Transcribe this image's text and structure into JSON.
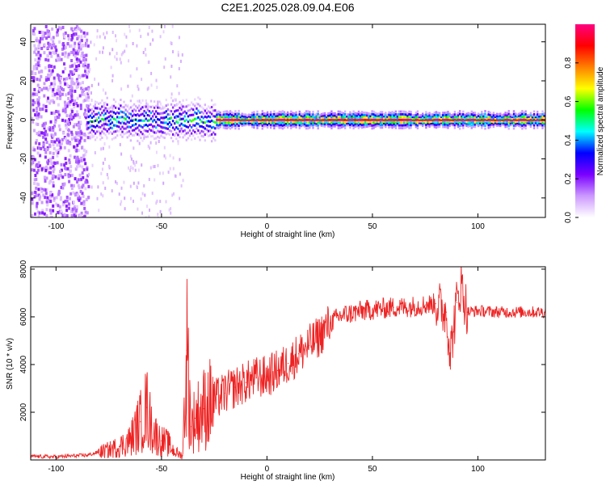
{
  "title": "C2E1.2025.028.09.04.E06",
  "chart_data": [
    {
      "type": "heatmap",
      "xlabel": "Height of straight line (km)",
      "ylabel": "Frequency (Hz)",
      "xlim": [
        -112,
        132
      ],
      "ylim": [
        -50,
        49
      ],
      "xticks": [
        "-100",
        "-50",
        "0",
        "50",
        "100"
      ],
      "xtick_values": [
        -100,
        -50,
        0,
        50,
        100
      ],
      "yticks": [
        "40",
        "20",
        "0",
        "-20",
        "-40"
      ],
      "ytick_values": [
        40,
        20,
        0,
        -20,
        -40
      ],
      "grid": false,
      "colorbar": {
        "label": "Normalized spectral amplitude",
        "range": [
          0,
          1
        ],
        "ticks": [
          "0.0",
          "0.2",
          "0.4",
          "0.6",
          "0.8"
        ],
        "tick_values": [
          0.0,
          0.2,
          0.4,
          0.6,
          0.8
        ],
        "colors": [
          "#ffffff",
          "#cc99ff",
          "#7a00ff",
          "#0000ff",
          "#00ffff",
          "#00ff00",
          "#ffff00",
          "#ff8000",
          "#ff0000",
          "#ff0080"
        ]
      },
      "ridge": {
        "frequency_hz": 0,
        "from_km": -85,
        "to_km": 132,
        "noise_region_km": [
          -112,
          -85
        ]
      }
    },
    {
      "type": "line",
      "xlabel": "Height of straight line (km)",
      "ylabel": "SNR (10 * v/v)",
      "xlim": [
        -112,
        132
      ],
      "ylim": [
        0,
        8100
      ],
      "xticks": [
        "-100",
        "-50",
        "0",
        "50",
        "100"
      ],
      "xtick_values": [
        -100,
        -50,
        0,
        50,
        100
      ],
      "yticks": [
        "8000",
        "6000",
        "4000",
        "2000"
      ],
      "ytick_values": [
        8000,
        6000,
        4000,
        2000
      ],
      "grid": false,
      "series": [
        {
          "color": "#ee2222",
          "x": [
            -112,
            -100,
            -90,
            -85,
            -80,
            -75,
            -70,
            -65,
            -60,
            -57,
            -55,
            -52,
            -50,
            -47,
            -45,
            -42,
            -40,
            -38,
            -36,
            -34,
            -30,
            -25,
            -20,
            -15,
            -10,
            -5,
            0,
            5,
            10,
            15,
            20,
            25,
            30,
            35,
            40,
            45,
            50,
            55,
            60,
            65,
            70,
            75,
            80,
            85,
            87,
            90,
            92,
            95,
            100,
            110,
            120,
            132
          ],
          "y": [
            150,
            130,
            180,
            200,
            320,
            420,
            560,
            820,
            1600,
            2200,
            1450,
            950,
            800,
            700,
            450,
            250,
            180,
            4600,
            1400,
            1750,
            2150,
            2500,
            2800,
            3050,
            3250,
            3450,
            3500,
            3750,
            4050,
            4450,
            4800,
            5200,
            5750,
            6050,
            6150,
            6250,
            6300,
            6350,
            6400,
            6400,
            6450,
            6500,
            6550,
            6200,
            4500,
            6600,
            7400,
            6200,
            6250,
            6200,
            6200,
            6200
          ]
        }
      ]
    }
  ]
}
